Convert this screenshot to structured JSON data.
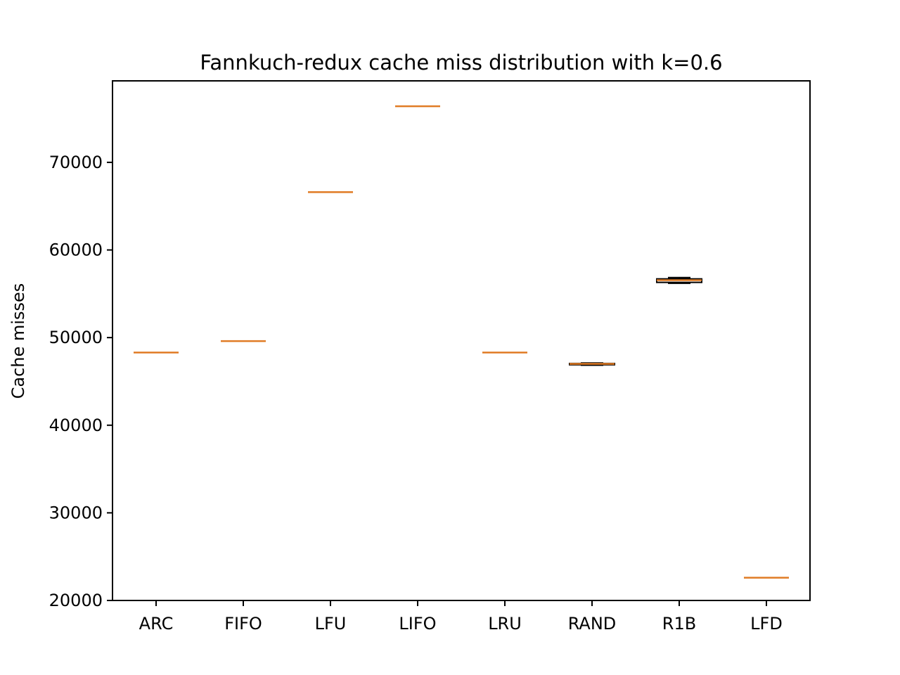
{
  "chart_data": {
    "type": "box",
    "title": "Fannkuch-redux cache miss distribution with k=0.6",
    "xlabel": "",
    "ylabel": "Cache misses",
    "ylim": [
      20000,
      79300
    ],
    "yticks": [
      20000,
      30000,
      40000,
      50000,
      60000,
      70000
    ],
    "grid": false,
    "categories": [
      "ARC",
      "FIFO",
      "LFU",
      "LIFO",
      "LRU",
      "RAND",
      "R1B",
      "LFD"
    ],
    "boxes": [
      {
        "category": "ARC",
        "min": 48300,
        "q1": 48300,
        "median": 48300,
        "q3": 48300,
        "max": 48300
      },
      {
        "category": "FIFO",
        "min": 49600,
        "q1": 49600,
        "median": 49600,
        "q3": 49600,
        "max": 49600
      },
      {
        "category": "LFU",
        "min": 66600,
        "q1": 66600,
        "median": 66600,
        "q3": 66600,
        "max": 66600
      },
      {
        "category": "LIFO",
        "min": 76400,
        "q1": 76400,
        "median": 76400,
        "q3": 76400,
        "max": 76400
      },
      {
        "category": "LRU",
        "min": 48300,
        "q1": 48300,
        "median": 48300,
        "q3": 48300,
        "max": 48300
      },
      {
        "category": "RAND",
        "min": 46850,
        "q1": 46900,
        "median": 47000,
        "q3": 47050,
        "max": 47100
      },
      {
        "category": "R1B",
        "min": 56200,
        "q1": 56300,
        "median": 56550,
        "q3": 56700,
        "max": 56850
      },
      {
        "category": "LFD",
        "min": 22600,
        "q1": 22600,
        "median": 22600,
        "q3": 22600,
        "max": 22600
      }
    ],
    "colors": {
      "median": "#e07b24",
      "box": "#000000",
      "axis": "#000000"
    }
  }
}
